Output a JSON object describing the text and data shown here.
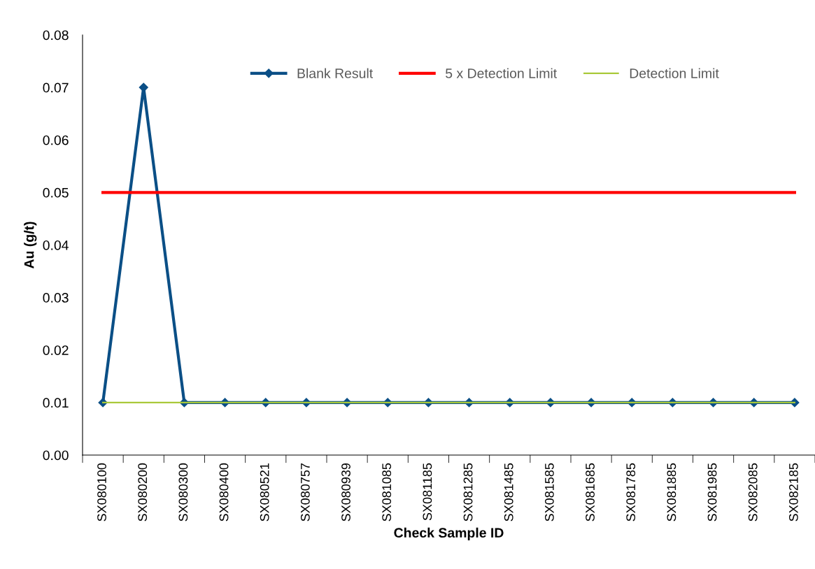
{
  "chart_data": {
    "type": "line",
    "xlabel": "Check Sample ID",
    "ylabel": "Au (g/t)",
    "categories": [
      "SX080100",
      "SX080200",
      "SX080300",
      "SX080400",
      "SX080521",
      "SX080757",
      "SX080939",
      "SX081085",
      "SX081185",
      "SX081285",
      "SX081485",
      "SX081585",
      "SX081685",
      "SX081785",
      "SX081885",
      "SX081985",
      "SX082085",
      "SX082185"
    ],
    "series": [
      {
        "name": "Blank Result",
        "color": "#0b4f86",
        "marker": "diamond",
        "values": [
          0.01,
          0.07,
          0.01,
          0.01,
          0.01,
          0.01,
          0.01,
          0.01,
          0.01,
          0.01,
          0.01,
          0.01,
          0.01,
          0.01,
          0.01,
          0.01,
          0.01,
          0.01
        ]
      },
      {
        "name": "5 x Detection Limit",
        "color": "#ff0000",
        "marker": "none",
        "values": [
          0.05,
          0.05,
          0.05,
          0.05,
          0.05,
          0.05,
          0.05,
          0.05,
          0.05,
          0.05,
          0.05,
          0.05,
          0.05,
          0.05,
          0.05,
          0.05,
          0.05,
          0.05
        ]
      },
      {
        "name": "Detection Limit",
        "color": "#a9c93a",
        "marker": "none",
        "values": [
          0.01,
          0.01,
          0.01,
          0.01,
          0.01,
          0.01,
          0.01,
          0.01,
          0.01,
          0.01,
          0.01,
          0.01,
          0.01,
          0.01,
          0.01,
          0.01,
          0.01,
          0.01
        ]
      }
    ],
    "ylim": [
      0,
      0.08
    ],
    "yticks": [
      {
        "value": 0,
        "label": "0.00"
      },
      {
        "value": 0.01,
        "label": "0.01"
      },
      {
        "value": 0.02,
        "label": "0.02"
      },
      {
        "value": 0.03,
        "label": "0.03"
      },
      {
        "value": 0.04,
        "label": "0.04"
      },
      {
        "value": 0.05,
        "label": "0.05"
      },
      {
        "value": 0.06,
        "label": "0.06"
      },
      {
        "value": 0.07,
        "label": "0.07"
      },
      {
        "value": 0.08,
        "label": "0.08"
      }
    ],
    "grid": false,
    "legend": "top",
    "line_style": "solid"
  }
}
